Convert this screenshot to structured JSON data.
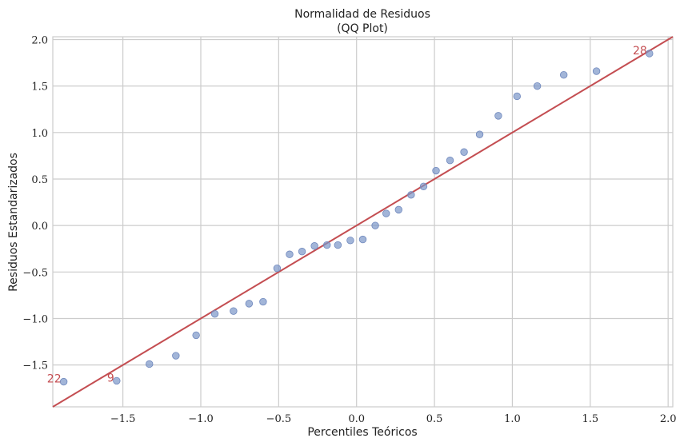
{
  "chart_data": {
    "type": "scatter",
    "title": "Normalidad de Residuos",
    "subtitle": "(QQ Plot)",
    "xlabel": "Percentiles Teóricos",
    "ylabel": "Residuos Estandarizados",
    "xlim": [
      -1.95,
      2.03
    ],
    "ylim": [
      -1.95,
      2.03
    ],
    "xticks": [
      -1.5,
      -1.0,
      -0.5,
      0.0,
      0.5,
      1.0,
      1.5,
      2.0
    ],
    "yticks": [
      -1.5,
      -1.0,
      -0.5,
      0.0,
      0.5,
      1.0,
      1.5,
      2.0
    ],
    "xtick_labels": [
      "−1.5",
      "−1.0",
      "−0.5",
      "0.0",
      "0.5",
      "1.0",
      "1.5",
      "2.0"
    ],
    "ytick_labels": [
      "−1.5",
      "−1.0",
      "−0.5",
      "0.0",
      "0.5",
      "1.0",
      "1.5",
      "2.0"
    ],
    "grid": true,
    "point_color": "#7b95c8",
    "line_color": "#c44e52",
    "reference_line": {
      "slope": 1,
      "intercept": 0
    },
    "points": [
      {
        "x": -1.88,
        "y": -1.68
      },
      {
        "x": -1.54,
        "y": -1.67
      },
      {
        "x": -1.33,
        "y": -1.49
      },
      {
        "x": -1.16,
        "y": -1.4
      },
      {
        "x": -1.03,
        "y": -1.18
      },
      {
        "x": -0.91,
        "y": -0.95
      },
      {
        "x": -0.79,
        "y": -0.92
      },
      {
        "x": -0.69,
        "y": -0.84
      },
      {
        "x": -0.6,
        "y": -0.82
      },
      {
        "x": -0.51,
        "y": -0.46
      },
      {
        "x": -0.43,
        "y": -0.31
      },
      {
        "x": -0.35,
        "y": -0.28
      },
      {
        "x": -0.27,
        "y": -0.22
      },
      {
        "x": -0.19,
        "y": -0.21
      },
      {
        "x": -0.12,
        "y": -0.21
      },
      {
        "x": -0.04,
        "y": -0.16
      },
      {
        "x": 0.04,
        "y": -0.15
      },
      {
        "x": 0.12,
        "y": 0.0
      },
      {
        "x": 0.19,
        "y": 0.13
      },
      {
        "x": 0.27,
        "y": 0.17
      },
      {
        "x": 0.35,
        "y": 0.33
      },
      {
        "x": 0.43,
        "y": 0.42
      },
      {
        "x": 0.51,
        "y": 0.59
      },
      {
        "x": 0.6,
        "y": 0.7
      },
      {
        "x": 0.69,
        "y": 0.79
      },
      {
        "x": 0.79,
        "y": 0.98
      },
      {
        "x": 0.91,
        "y": 1.18
      },
      {
        "x": 1.03,
        "y": 1.39
      },
      {
        "x": 1.16,
        "y": 1.5
      },
      {
        "x": 1.33,
        "y": 1.62
      },
      {
        "x": 1.54,
        "y": 1.66
      },
      {
        "x": 1.88,
        "y": 1.85
      }
    ],
    "annotations": [
      {
        "text": "22",
        "x": -1.88,
        "y": -1.68,
        "color": "#c44e52"
      },
      {
        "text": "9",
        "x": -1.54,
        "y": -1.67,
        "color": "#c44e52"
      },
      {
        "text": "28",
        "x": 1.88,
        "y": 1.85,
        "color": "#c44e52"
      }
    ]
  }
}
